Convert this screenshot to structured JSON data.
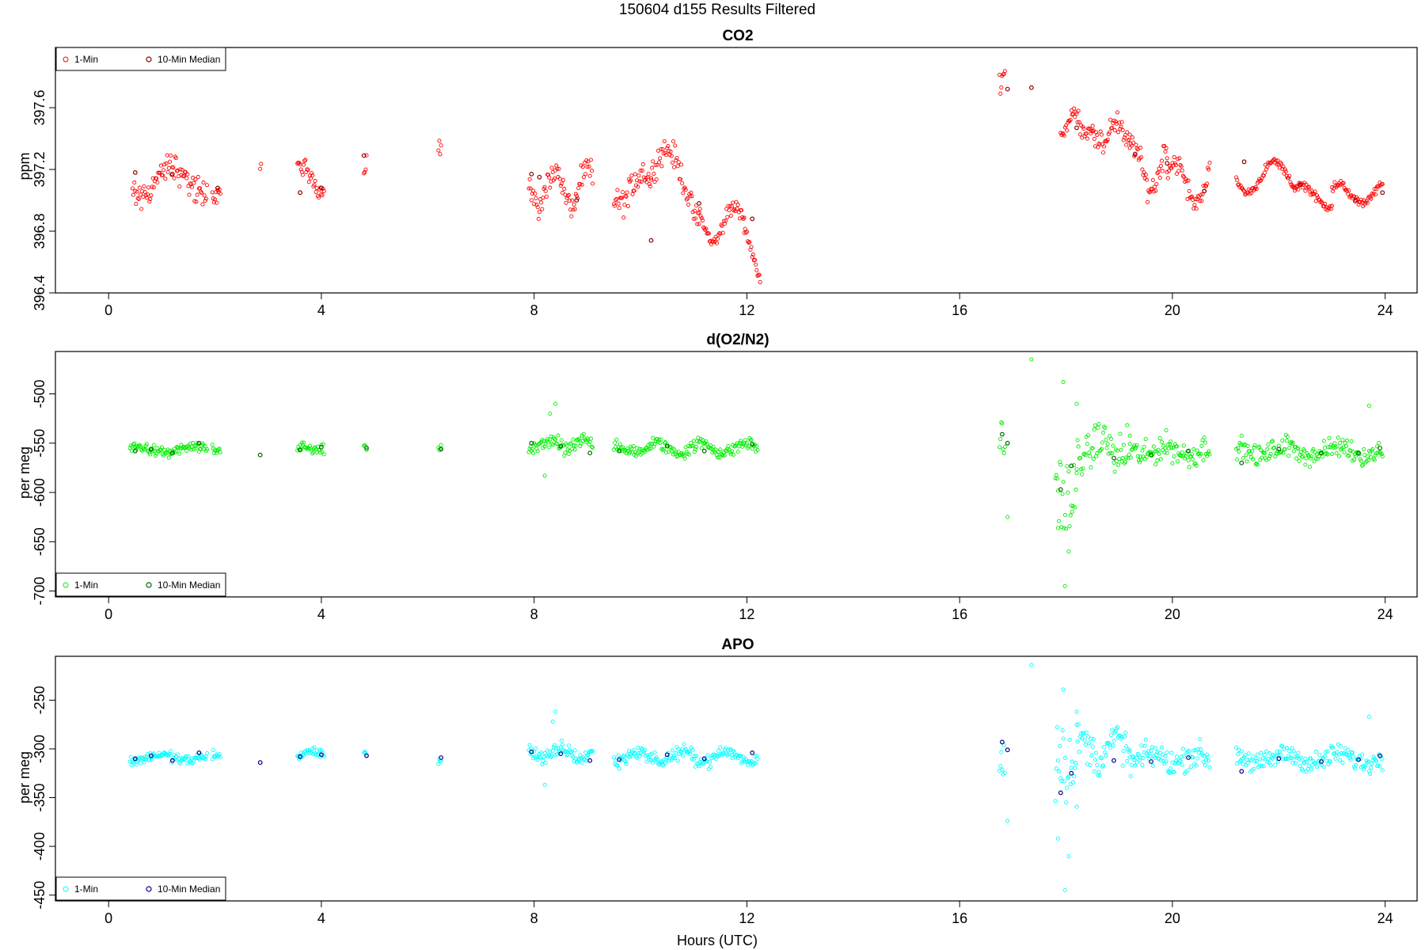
{
  "figure": {
    "title": "150604   d155   Results Filtered",
    "xlabel": "Hours (UTC)"
  },
  "chart_data": [
    {
      "type": "scatter",
      "title": "CO2",
      "ylabel": "ppm",
      "xlim": [
        -1,
        24.6
      ],
      "ylim": [
        396.4,
        397.99
      ],
      "xticks": [
        "0",
        "4",
        "8",
        "12",
        "16",
        "20",
        "24"
      ],
      "yticks": [
        "396.4",
        "396.8",
        "397.2",
        "397.6"
      ],
      "legend": {
        "position": "top-left",
        "entries": [
          "1-Min",
          "10-Min Median"
        ]
      },
      "colors": {
        "one_min": "#ff0000",
        "median": "#8b0000"
      },
      "segments_1min": [
        [
          0.45,
          1.85,
          397.12,
          0.1,
          0.8,
          0.07
        ],
        [
          1.95,
          2.1,
          397.1,
          0.07,
          1.5,
          0.04
        ],
        [
          2.85,
          2.88,
          397.22,
          0.03,
          1,
          0.02
        ],
        [
          3.55,
          4.05,
          397.14,
          0.08,
          1,
          0.05
        ],
        [
          4.8,
          4.85,
          397.2,
          0.1,
          1,
          0.05
        ],
        [
          6.2,
          6.25,
          397.25,
          0.1,
          1,
          0.05
        ],
        [
          7.9,
          9.1,
          397.08,
          0.12,
          1.6,
          0.06
        ],
        [
          9.5,
          10.2,
          397.08,
          0.1,
          1.2,
          0.07
        ],
        [
          10.2,
          11.1,
          397.08,
          0.25,
          0.7,
          0.06
        ],
        [
          11.1,
          11.95,
          396.85,
          0.12,
          1.3,
          0.04
        ],
        [
          11.95,
          12.25,
          396.67,
          0.2,
          1,
          0.03
        ],
        [
          16.75,
          16.85,
          397.78,
          0.06,
          2,
          0.05
        ],
        [
          17.9,
          18.5,
          397.5,
          0.06,
          2.2,
          0.04
        ],
        [
          18.5,
          19.2,
          397.43,
          0.08,
          1.8,
          0.06
        ],
        [
          19.2,
          19.9,
          397.22,
          0.15,
          1.4,
          0.06
        ],
        [
          19.9,
          20.7,
          397.12,
          0.13,
          1.3,
          0.05
        ],
        [
          21.2,
          22.3,
          397.15,
          0.1,
          1,
          0.02
        ],
        [
          22.3,
          23.0,
          397.03,
          0.07,
          1,
          0.02
        ],
        [
          23.0,
          23.95,
          397.04,
          0.06,
          1.2,
          0.02
        ]
      ],
      "medians": [
        [
          0.5,
          397.18
        ],
        [
          1.2,
          397.17
        ],
        [
          2.05,
          397.08
        ],
        [
          3.6,
          397.05
        ],
        [
          4.0,
          397.08
        ],
        [
          4.8,
          397.29
        ],
        [
          7.95,
          397.17
        ],
        [
          8.1,
          397.15
        ],
        [
          8.8,
          397.0
        ],
        [
          10.2,
          396.74
        ],
        [
          11.1,
          396.98
        ],
        [
          12.1,
          396.88
        ],
        [
          16.9,
          397.72
        ],
        [
          17.35,
          397.73
        ],
        [
          18.2,
          397.47
        ],
        [
          19.3,
          397.3
        ],
        [
          19.9,
          397.24
        ],
        [
          20.6,
          397.06
        ],
        [
          21.35,
          397.25
        ],
        [
          22.4,
          397.1
        ],
        [
          23.45,
          397.0
        ],
        [
          23.95,
          397.05
        ]
      ]
    },
    {
      "type": "scatter",
      "title": "d(O2/N2)",
      "ylabel": "per meg",
      "xlim": [
        -1,
        24.6
      ],
      "ylim": [
        -706,
        -457
      ],
      "xticks": [
        "0",
        "4",
        "8",
        "12",
        "16",
        "20",
        "24"
      ],
      "yticks": [
        "-500",
        "-550",
        "-600",
        "-650",
        "-700"
      ],
      "legend": {
        "position": "bottom-left",
        "entries": [
          "1-Min",
          "10-Min Median"
        ]
      },
      "colors": {
        "one_min": "#00ee00",
        "median": "#006400"
      },
      "segments_1min": [
        [
          0.4,
          1.85,
          -557,
          3,
          1,
          4
        ],
        [
          1.95,
          2.1,
          -558,
          3,
          1,
          5
        ],
        [
          3.55,
          4.05,
          -555,
          3,
          1,
          4
        ],
        [
          4.8,
          4.85,
          -554,
          2,
          1,
          3
        ],
        [
          6.2,
          6.25,
          -558,
          3,
          1,
          4
        ],
        [
          7.9,
          9.1,
          -552,
          5,
          1.5,
          6
        ],
        [
          9.5,
          12.2,
          -555,
          5,
          1.2,
          5
        ],
        [
          16.75,
          16.85,
          -560,
          15,
          1,
          20
        ],
        [
          17.8,
          18.2,
          -585,
          30,
          1,
          30
        ],
        [
          18.2,
          19.2,
          -555,
          10,
          1.5,
          15
        ],
        [
          19.2,
          20.7,
          -558,
          5,
          1.2,
          10
        ],
        [
          21.2,
          23.95,
          -558,
          5,
          1,
          8
        ]
      ],
      "outliers": [
        [
          8.4,
          -510
        ],
        [
          8.3,
          -520
        ],
        [
          8.2,
          -583
        ],
        [
          16.9,
          -625
        ],
        [
          17.35,
          -465
        ],
        [
          17.95,
          -488
        ],
        [
          17.98,
          -695
        ],
        [
          18.05,
          -660
        ],
        [
          17.85,
          -636
        ],
        [
          18.2,
          -510
        ],
        [
          23.7,
          -512
        ]
      ],
      "medians": [
        [
          0.5,
          -558
        ],
        [
          0.8,
          -556
        ],
        [
          1.2,
          -560
        ],
        [
          1.7,
          -550
        ],
        [
          2.85,
          -562
        ],
        [
          3.6,
          -557
        ],
        [
          4.0,
          -554
        ],
        [
          4.85,
          -555
        ],
        [
          6.25,
          -556
        ],
        [
          7.95,
          -550
        ],
        [
          8.5,
          -553
        ],
        [
          9.05,
          -560
        ],
        [
          9.6,
          -558
        ],
        [
          10.5,
          -553
        ],
        [
          11.2,
          -558
        ],
        [
          12.1,
          -551
        ],
        [
          16.8,
          -541
        ],
        [
          16.9,
          -550
        ],
        [
          17.9,
          -597
        ],
        [
          18.1,
          -573
        ],
        [
          18.9,
          -565
        ],
        [
          19.6,
          -562
        ],
        [
          20.3,
          -558
        ],
        [
          21.3,
          -570
        ],
        [
          22.0,
          -556
        ],
        [
          22.8,
          -560
        ],
        [
          23.5,
          -560
        ],
        [
          23.9,
          -555
        ]
      ]
    },
    {
      "type": "scatter",
      "title": "APO",
      "ylabel": "per meg",
      "xlim": [
        -1,
        24.6
      ],
      "ylim": [
        -456,
        -205
      ],
      "xticks": [
        "0",
        "4",
        "8",
        "12",
        "16",
        "20",
        "24"
      ],
      "yticks": [
        "-250",
        "-300",
        "-350",
        "-400",
        "-450"
      ],
      "legend": {
        "position": "bottom-left",
        "entries": [
          "1-Min",
          "10-Min Median"
        ]
      },
      "colors": {
        "one_min": "#00ffff",
        "median": "#00008b"
      },
      "segments_1min": [
        [
          0.4,
          1.85,
          -309,
          3,
          1,
          4
        ],
        [
          1.95,
          2.1,
          -310,
          3,
          1,
          5
        ],
        [
          3.55,
          4.05,
          -306,
          3,
          1,
          4
        ],
        [
          4.8,
          4.85,
          -306,
          2,
          1,
          3
        ],
        [
          6.2,
          6.25,
          -309,
          3,
          1,
          4
        ],
        [
          7.9,
          9.1,
          -305,
          5,
          1.5,
          6
        ],
        [
          9.5,
          12.2,
          -308,
          5,
          1.2,
          5
        ],
        [
          16.75,
          16.85,
          -295,
          15,
          1,
          20
        ],
        [
          17.8,
          18.2,
          -335,
          30,
          1,
          30
        ],
        [
          18.2,
          19.2,
          -300,
          10,
          1.5,
          15
        ],
        [
          19.2,
          20.7,
          -310,
          5,
          1.2,
          10
        ],
        [
          21.2,
          23.95,
          -310,
          5,
          1,
          8
        ]
      ],
      "outliers": [
        [
          8.4,
          -262
        ],
        [
          8.35,
          -272
        ],
        [
          8.2,
          -337
        ],
        [
          16.9,
          -374
        ],
        [
          17.35,
          -214
        ],
        [
          17.95,
          -239
        ],
        [
          17.98,
          -445
        ],
        [
          18.05,
          -410
        ],
        [
          17.85,
          -392
        ],
        [
          18.2,
          -262
        ],
        [
          23.7,
          -267
        ]
      ],
      "medians": [
        [
          0.5,
          -310
        ],
        [
          0.8,
          -307
        ],
        [
          1.2,
          -312
        ],
        [
          1.7,
          -304
        ],
        [
          2.85,
          -314
        ],
        [
          3.6,
          -308
        ],
        [
          4.0,
          -306
        ],
        [
          4.85,
          -307
        ],
        [
          6.25,
          -309
        ],
        [
          7.95,
          -303
        ],
        [
          8.5,
          -305
        ],
        [
          9.05,
          -312
        ],
        [
          9.6,
          -311
        ],
        [
          10.5,
          -306
        ],
        [
          11.2,
          -310
        ],
        [
          12.1,
          -304
        ],
        [
          16.8,
          -293
        ],
        [
          16.9,
          -301
        ],
        [
          17.9,
          -345
        ],
        [
          18.1,
          -325
        ],
        [
          18.9,
          -312
        ],
        [
          19.6,
          -313
        ],
        [
          20.3,
          -309
        ],
        [
          21.3,
          -323
        ],
        [
          22.0,
          -310
        ],
        [
          22.8,
          -313
        ],
        [
          23.5,
          -311
        ],
        [
          23.9,
          -307
        ]
      ]
    }
  ]
}
